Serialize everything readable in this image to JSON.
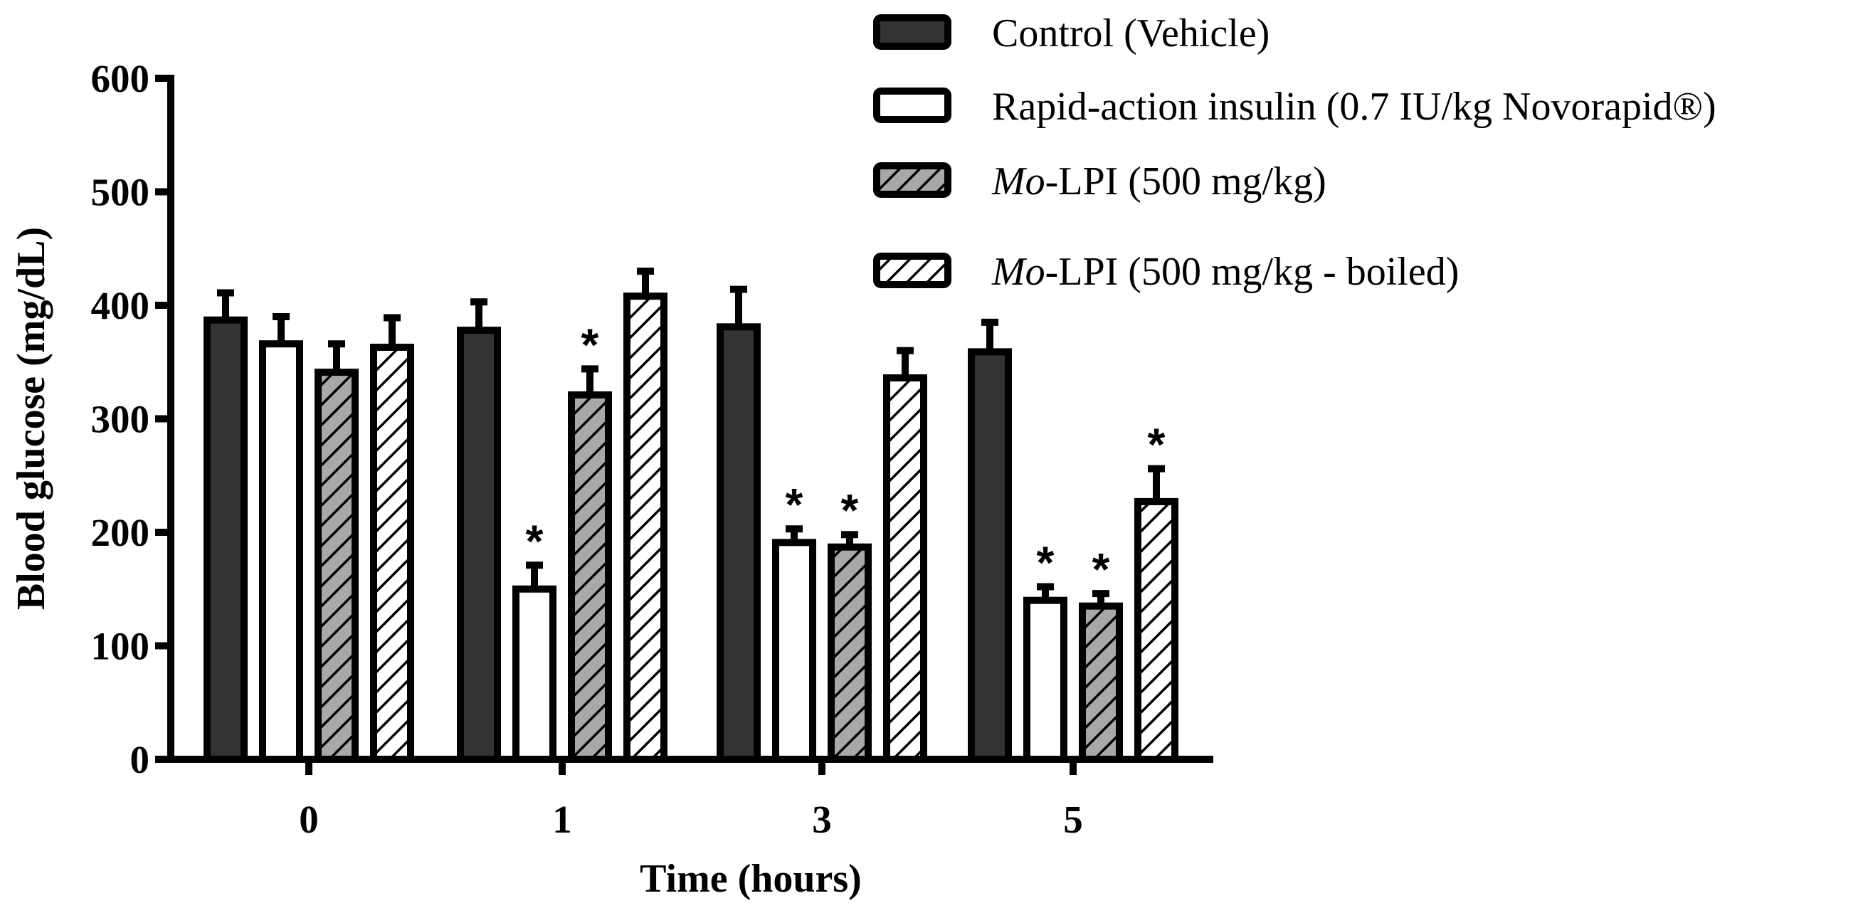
{
  "chart_data": {
    "type": "bar",
    "title": "",
    "xlabel": "Time (hours)",
    "ylabel": "Blood glucose (mg/dL)",
    "ylim": [
      0,
      600
    ],
    "yticks": [
      0,
      100,
      200,
      300,
      400,
      500,
      600
    ],
    "categories": [
      "0",
      "1",
      "3",
      "5"
    ],
    "legend_position": "top-right",
    "significance_marker": "*",
    "series": [
      {
        "name": "Control (Vehicle)",
        "legend_parts": [
          {
            "text": "Control (Vehicle)",
            "italic": false
          }
        ],
        "pattern": "solid-dark",
        "values": [
          387,
          378,
          381,
          359
        ],
        "errors": [
          24,
          25,
          33,
          26
        ],
        "significant": [
          false,
          false,
          false,
          false
        ]
      },
      {
        "name": "Rapid-action insulin (0.7 IU/kg Novorapid®)",
        "legend_parts": [
          {
            "text": "Rapid-action insulin (0.7 IU/kg Novorapid®)",
            "italic": false
          }
        ],
        "pattern": "white",
        "values": [
          366,
          150,
          191,
          140
        ],
        "errors": [
          24,
          21,
          12,
          12
        ],
        "significant": [
          false,
          true,
          true,
          true
        ]
      },
      {
        "name": "Mo-LPI (500 mg/kg)",
        "legend_parts": [
          {
            "text": "Mo",
            "italic": true
          },
          {
            "text": "-LPI (500 mg/kg)",
            "italic": false
          }
        ],
        "pattern": "hatch-gray",
        "values": [
          341,
          321,
          187,
          135
        ],
        "errors": [
          25,
          23,
          11,
          11
        ],
        "significant": [
          false,
          true,
          true,
          true
        ]
      },
      {
        "name": "Mo-LPI (500 mg/kg - boiled)",
        "legend_parts": [
          {
            "text": "Mo",
            "italic": true
          },
          {
            "text": "-LPI (500 mg/kg - boiled)",
            "italic": false
          }
        ],
        "pattern": "hatch-white",
        "values": [
          363,
          408,
          336,
          227
        ],
        "errors": [
          26,
          22,
          24,
          29
        ],
        "significant": [
          false,
          false,
          false,
          true
        ]
      }
    ],
    "colors": {
      "dark": "#333333",
      "gray": "#a8a8a8",
      "white": "#ffffff",
      "stroke": "#000000"
    }
  }
}
